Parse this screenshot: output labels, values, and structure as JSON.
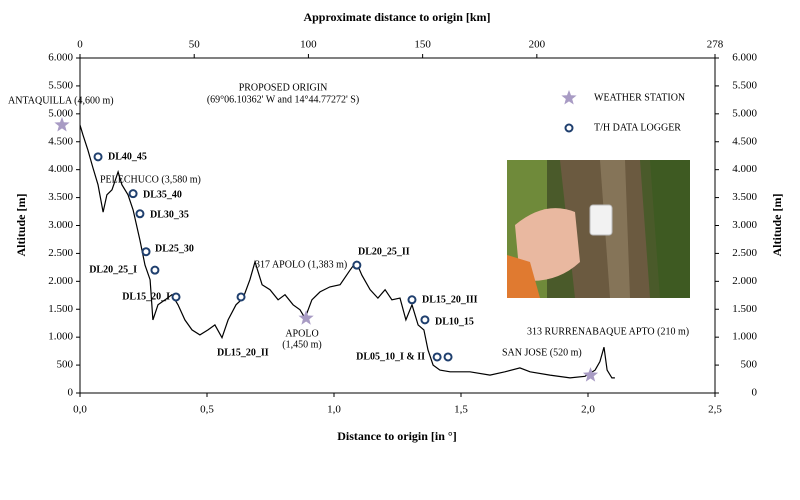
{
  "chart_data": {
    "type": "line",
    "x_label": "Distance to origin [in °]",
    "x2_label": "Approximate distance to origin [km]",
    "y_label": "Altitude [m]",
    "y2_label": "Altitude [m]",
    "xlim": [
      0,
      2.5
    ],
    "xticks": [
      {
        "value": 0,
        "label": "0,0"
      },
      {
        "value": 0.5,
        "label": "0,5"
      },
      {
        "value": 1,
        "label": "1,0"
      },
      {
        "value": 1.5,
        "label": "1,5"
      },
      {
        "value": 2,
        "label": "2,0"
      },
      {
        "value": 2.5,
        "label": "2,5"
      }
    ],
    "x2lim": [
      0,
      278
    ],
    "x2ticks": [
      0,
      50,
      100,
      150,
      200,
      278
    ],
    "ylim": [
      0,
      6000
    ],
    "yticks": [
      0,
      500,
      {
        "value": 1000,
        "label": "1.000"
      },
      {
        "value": 1500,
        "label": "1.500"
      },
      {
        "value": 2000,
        "label": "2.000"
      },
      {
        "value": 2500,
        "label": "2.500"
      },
      {
        "value": 3000,
        "label": "3.000"
      },
      {
        "value": 3500,
        "label": "3.500"
      },
      {
        "value": 4000,
        "label": "4.000"
      },
      {
        "value": 4500,
        "label": "4.500"
      },
      {
        "value": 5000,
        "label": "5.000"
      },
      {
        "value": 5500,
        "label": "5.500"
      },
      {
        "value": 6000,
        "label": "6.000"
      }
    ],
    "y2lim": [
      0,
      6000
    ],
    "y2ticks": [
      0,
      500,
      {
        "value": 1000,
        "label": "1.000"
      },
      {
        "value": 1500,
        "label": "1.500"
      },
      {
        "value": 2000,
        "label": "2.000"
      },
      {
        "value": 2500,
        "label": "2.500"
      },
      {
        "value": 3000,
        "label": "3.000"
      },
      {
        "value": 3500,
        "label": "3.500"
      },
      {
        "value": 4000,
        "label": "4.000"
      },
      {
        "value": 4500,
        "label": "4.500"
      },
      {
        "value": 5000,
        "label": "5.000"
      },
      {
        "value": 5500,
        "label": "5.500"
      },
      {
        "value": 6000,
        "label": "6.000"
      }
    ],
    "series": [
      {
        "color": "#000000",
        "marker": "none",
        "x": [
          0,
          0.012,
          0.031,
          0.051,
          0.071,
          0.091,
          0.106,
          0.126,
          0.15,
          0.165,
          0.189,
          0.209,
          0.236,
          0.256,
          0.276,
          0.287,
          0.307,
          0.335,
          0.362,
          0.386,
          0.413,
          0.441,
          0.472,
          0.504,
          0.531,
          0.559,
          0.583,
          0.614,
          0.642,
          0.669,
          0.689,
          0.717,
          0.748,
          0.78,
          0.807,
          0.839,
          0.866,
          0.886,
          0.913,
          0.945,
          0.984,
          1.024,
          1.063,
          1.087,
          1.11,
          1.142,
          1.173,
          1.201,
          1.228,
          1.26,
          1.283,
          1.307,
          1.331,
          1.354,
          1.37,
          1.39,
          1.417,
          1.457,
          1.535,
          1.614,
          1.673,
          1.732,
          1.772,
          1.85,
          1.929,
          1.988,
          2.028,
          2.047,
          2.063,
          2.075,
          2.094,
          2.106
        ],
        "values": [
          4800,
          4620,
          4350,
          4030,
          3730,
          3240,
          3550,
          3640,
          3960,
          3730,
          3550,
          3280,
          2740,
          2290,
          2030,
          1310,
          1580,
          1670,
          1760,
          1580,
          1310,
          1130,
          1040,
          1130,
          1220,
          990,
          1310,
          1580,
          1700,
          2030,
          2350,
          1940,
          1850,
          1670,
          1760,
          1580,
          1490,
          1340,
          1670,
          1810,
          1900,
          1940,
          2200,
          2350,
          2110,
          1850,
          1700,
          1850,
          1670,
          1700,
          1310,
          1580,
          1220,
          1130,
          770,
          500,
          410,
          380,
          380,
          320,
          380,
          450,
          380,
          320,
          270,
          300,
          410,
          560,
          820,
          410,
          270,
          270
        ]
      },
      {
        "name": "WEATHER STATION",
        "color": "#a89bc4",
        "marker": "star",
        "x": [
          -0.071,
          0.89,
          2.01
        ],
        "values": [
          4800,
          1340,
          320
        ]
      },
      {
        "name": "T/H DATA LOGGER",
        "color": "#1f3f6e",
        "marker": "circle",
        "x": [
          0.071,
          0.209,
          0.236,
          0.26,
          0.295,
          0.378,
          0.634,
          1.09,
          1.307,
          1.358,
          1.406,
          1.449
        ],
        "values": [
          4230,
          3570,
          3210,
          2530,
          2200,
          1720,
          1720,
          2290,
          1670,
          1310,
          645,
          645
        ],
        "labels": [
          "DL40_45",
          "DL35_40",
          "DL30_35",
          "DL25_30",
          "DL20_25_I",
          "DL15_20_I",
          "DL15_20_II",
          "DL20_25_II",
          "DL15_20_III",
          "DL10_15",
          "DL05_10_I & II",
          null
        ]
      }
    ],
    "annotations": [
      "ANTAQUILLA (4,600 m)",
      "PROPOSED ORIGIN",
      "(69°06.10362' W and 14°44.77272' S)",
      "PELECHUCO (3,580 m)",
      "317 APOLO (1,383 m)",
      "APOLO",
      "(1,450 m)",
      "SAN JOSE (520 m)",
      "313 RURRENABAQUE APTO (210 m)"
    ]
  }
}
